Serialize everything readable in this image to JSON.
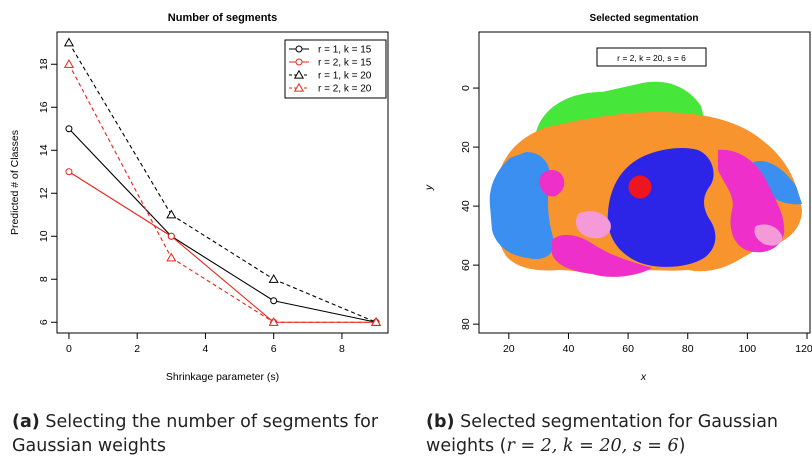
{
  "chart_data": [
    {
      "type": "line",
      "title": "Number of segments",
      "xlabel": "Shrinkage parameter (s)",
      "ylabel": "Predicted # of Classes",
      "xlim": [
        -0.35,
        9.35
      ],
      "ylim": [
        5.5,
        19.5
      ],
      "xticks": [
        "0",
        "2",
        "4",
        "6",
        "8"
      ],
      "yticks": [
        "6",
        "8",
        "10",
        "12",
        "14",
        "16",
        "18"
      ],
      "x": [
        0,
        3,
        6,
        9
      ],
      "legend_position": "top-right",
      "series": [
        {
          "name": "r = 1, k = 15",
          "values": [
            15,
            10,
            7,
            6
          ],
          "color": "#000000",
          "line": "solid",
          "marker": "circle"
        },
        {
          "name": "r = 2, k = 15",
          "values": [
            13,
            10,
            6,
            6
          ],
          "color": "#e8251b",
          "line": "solid",
          "marker": "circle"
        },
        {
          "name": "r = 1, k = 20",
          "values": [
            19,
            11,
            8,
            6
          ],
          "color": "#000000",
          "line": "dashed",
          "marker": "triangle"
        },
        {
          "name": "r = 2, k = 20",
          "values": [
            18,
            9,
            6,
            6
          ],
          "color": "#e8251b",
          "line": "dashed",
          "marker": "triangle"
        }
      ]
    },
    {
      "type": "heatmap",
      "title": "Selected segmentation",
      "xlabel": "x",
      "ylabel": "y",
      "xlim": [
        10,
        121
      ],
      "ylim": [
        -19,
        83
      ],
      "y_reversed": true,
      "xticks": [
        "20",
        "40",
        "60",
        "80",
        "100",
        "120"
      ],
      "yticks": [
        "0",
        "20",
        "40",
        "60",
        "80"
      ],
      "legend": "r = 2, k = 20, s = 6",
      "segment_colors": {
        "orange": "#f7942e",
        "green": "#46e63a",
        "lightblue": "#3a8ff0",
        "darkblue": "#2c25e8",
        "magenta": "#ee2fc9",
        "red": "#ee1520",
        "pink": "#f59ad9"
      }
    }
  ],
  "captions": {
    "a": {
      "tag": "(a)",
      "text": "Selecting the number of segments for Gaussian weights"
    },
    "b": {
      "tag": "(b)",
      "text_before": "Selected segmentation for Gaussian",
      "text_line2": "weights (",
      "math": "r = 2, k = 20, s = 6",
      "text_after": ")"
    }
  }
}
